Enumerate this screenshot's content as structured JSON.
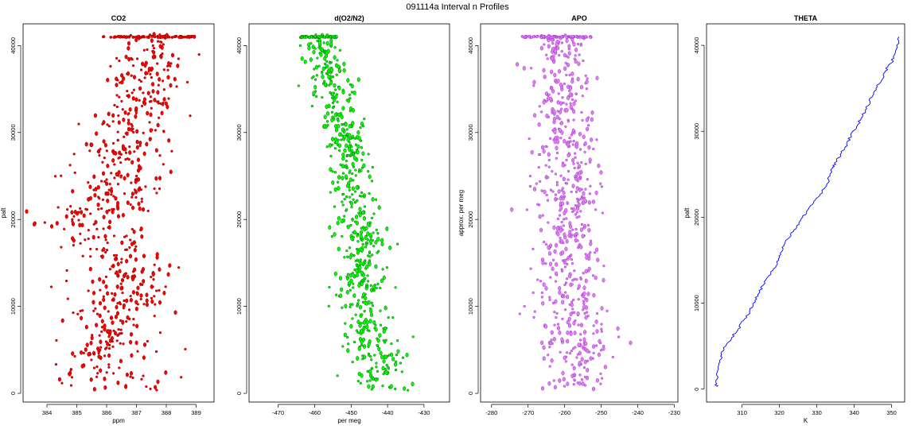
{
  "figure": {
    "title": "091114a   Interval n Profiles"
  },
  "chart_data": [
    {
      "type": "scatter",
      "title": "CO2",
      "xlabel": "ppm",
      "ylabel": "palt",
      "xlim": [
        383.2,
        389.6
      ],
      "ylim": [
        -1000,
        42500
      ],
      "xticks": [
        384,
        385,
        386,
        387,
        388,
        389
      ],
      "yticks": [
        0,
        10000,
        20000,
        30000,
        40000
      ],
      "ytick_labels": [
        "0",
        "10000",
        "20000",
        "30000",
        "40000"
      ],
      "color": "#ff0000",
      "edge_color": "#8b0000",
      "profile": [
        [
          0,
          386.9,
          0.8
        ],
        [
          2500,
          386.0,
          0.8
        ],
        [
          5000,
          386.0,
          0.8
        ],
        [
          8000,
          386.2,
          0.8
        ],
        [
          12000,
          386.6,
          0.9
        ],
        [
          15000,
          386.5,
          0.8
        ],
        [
          18000,
          385.8,
          0.9
        ],
        [
          20000,
          385.0,
          0.7
        ],
        [
          22500,
          386.4,
          0.8
        ],
        [
          25000,
          386.5,
          0.8
        ],
        [
          28000,
          386.5,
          0.7
        ],
        [
          31000,
          386.8,
          0.7
        ],
        [
          34000,
          387.3,
          0.6
        ],
        [
          37000,
          387.2,
          0.6
        ],
        [
          39500,
          387.6,
          0.5
        ]
      ],
      "top_palt": 41000,
      "top_range": [
        385.8,
        389.0
      ],
      "n_points": 650,
      "series": [
        {
          "name": "",
          "values": []
        }
      ]
    },
    {
      "type": "scatter",
      "title": "d(O2/N2)",
      "xlabel": "per meg",
      "ylabel": "",
      "xlim": [
        -478,
        -423
      ],
      "ylim": [
        -1000,
        42500
      ],
      "xticks": [
        -470,
        -460,
        -450,
        -440,
        -430
      ],
      "yticks": [
        0,
        10000,
        20000,
        30000,
        40000
      ],
      "ytick_labels": [
        "0",
        "10000",
        "20000",
        "30000",
        "40000"
      ],
      "color": "#00ff00",
      "edge_color": "#006400",
      "profile": [
        [
          0,
          -442,
          4
        ],
        [
          3000,
          -442,
          4
        ],
        [
          6000,
          -444,
          4
        ],
        [
          10000,
          -446,
          4
        ],
        [
          13000,
          -447,
          3.5
        ],
        [
          17000,
          -446,
          3.5
        ],
        [
          20000,
          -448,
          3.5
        ],
        [
          23000,
          -449,
          3
        ],
        [
          26000,
          -450,
          3
        ],
        [
          30000,
          -452,
          3
        ],
        [
          33000,
          -454,
          3
        ],
        [
          36000,
          -455,
          3
        ],
        [
          39000,
          -457,
          3
        ],
        [
          41000,
          -459,
          2
        ]
      ],
      "top_palt": 41000,
      "top_range": [
        -464,
        -454
      ],
      "n_points": 650,
      "series": [
        {
          "name": "",
          "values": []
        }
      ]
    },
    {
      "type": "scatter",
      "title": "APO",
      "xlabel": "",
      "ylabel": "approx. per meg",
      "xlim": [
        -283,
        -229
      ],
      "ylim": [
        -1000,
        42500
      ],
      "xticks": [
        -280,
        -270,
        -260,
        -250,
        -240,
        -230
      ],
      "yticks": [
        0,
        10000,
        20000,
        30000,
        40000
      ],
      "ytick_labels": [
        "0",
        "10000",
        "20000",
        "30000",
        "40000"
      ],
      "color": "#e37ef0",
      "edge_color": "#9932cc",
      "profile": [
        [
          0,
          -256,
          5
        ],
        [
          4000,
          -256,
          5
        ],
        [
          8000,
          -258,
          5
        ],
        [
          12000,
          -259,
          5
        ],
        [
          16000,
          -259,
          4.5
        ],
        [
          20000,
          -259,
          4.5
        ],
        [
          24000,
          -259,
          4.5
        ],
        [
          28000,
          -260,
          4
        ],
        [
          32000,
          -260,
          4
        ],
        [
          36000,
          -261,
          4
        ],
        [
          40000,
          -262,
          3.5
        ]
      ],
      "top_palt": 41000,
      "top_range": [
        -272,
        -252
      ],
      "n_points": 650,
      "series": [
        {
          "name": "",
          "values": []
        }
      ]
    },
    {
      "type": "line",
      "title": "THETA",
      "xlabel": "K",
      "ylabel": "palt",
      "xlim": [
        300.5,
        353.5
      ],
      "ylim": [
        -1500,
        42500
      ],
      "xticks": [
        310,
        320,
        330,
        340,
        350
      ],
      "yticks": [
        0,
        10000,
        20000,
        30000,
        40000
      ],
      "ytick_labels": [
        "0",
        "10000",
        "20000",
        "30000",
        "40000"
      ],
      "color": "#0000ff",
      "series": [
        {
          "name": "",
          "x": [
            303.2,
            303.0,
            303.4,
            303.8,
            304.5,
            305.6,
            307.2,
            309.0,
            310.4,
            312.0,
            313.0,
            314.2,
            315.4,
            316.8,
            318.4,
            319.8,
            320.6,
            321.5,
            323.0,
            324.6,
            326.2,
            327.8,
            329.6,
            331.4,
            333.0,
            333.5,
            334.2,
            335.4,
            336.6,
            338.0,
            339.2,
            340.6,
            341.8,
            343.0,
            344.2,
            345.2,
            346.6,
            347.8,
            349.0,
            350.6,
            351.2,
            352.0
          ],
          "y": [
            300,
            800,
            2000,
            3000,
            4000,
            5000,
            6000,
            7000,
            8000,
            9000,
            10000,
            11000,
            12000,
            13000,
            14000,
            15000,
            16000,
            17000,
            18000,
            19000,
            20000,
            21000,
            22000,
            23000,
            24000,
            25000,
            25800,
            26500,
            27500,
            28500,
            29500,
            30500,
            31500,
            32500,
            33500,
            34500,
            35500,
            36500,
            37500,
            38500,
            39500,
            41000
          ]
        }
      ]
    }
  ]
}
